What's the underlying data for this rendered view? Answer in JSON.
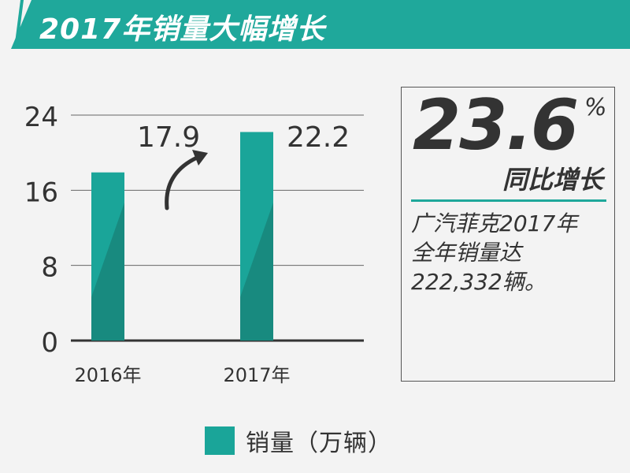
{
  "header": {
    "title": "2017年销量大幅增长"
  },
  "colors": {
    "accent": "#1fa89b",
    "bar_light": "#1aa599",
    "bar_dark": "#188a7f",
    "text": "#333333",
    "axis": "#333333",
    "grid": "#666666"
  },
  "chart_data": {
    "type": "bar",
    "categories": [
      "2016年",
      "2017年"
    ],
    "series": [
      {
        "name": "销量（万辆）",
        "values": [
          17.9,
          22.2
        ]
      }
    ],
    "data_labels": [
      "17.9",
      "22.2"
    ],
    "y_ticks": [
      0,
      8,
      16,
      24
    ],
    "ylim": [
      0,
      24
    ],
    "grid": true,
    "legend_position": "bottom",
    "annotation": "upward-arrow"
  },
  "info_box": {
    "percentage": "23.6",
    "percent_sign": "%",
    "growth_label": "同比增长",
    "description_lines": [
      "广汽菲克2017年",
      "全年销量达",
      "222,332辆。"
    ]
  },
  "legend": {
    "label": "销量（万辆）"
  }
}
